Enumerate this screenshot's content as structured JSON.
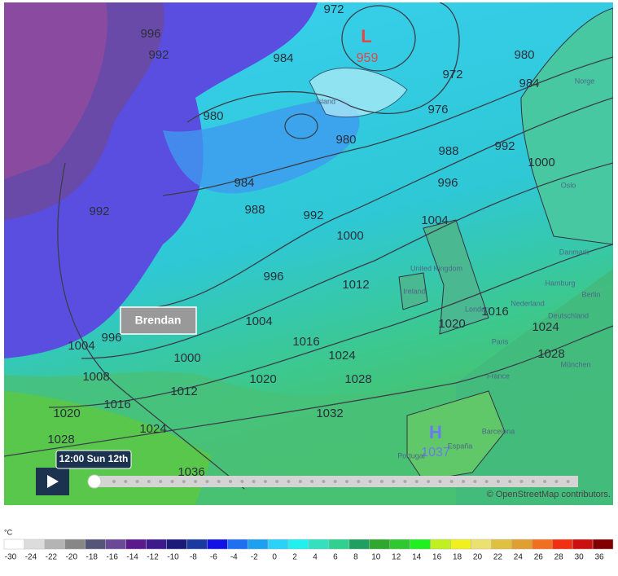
{
  "map": {
    "low": {
      "letter": "L",
      "pressure": 959
    },
    "high": {
      "letter": "H",
      "pressure": 1037
    },
    "storm_label": "Brendan",
    "time_label": "12:00 Sun 12th",
    "attribution": "© OpenStreetMap contributors.",
    "isobar_labels": [
      996,
      992,
      984,
      972,
      980,
      980,
      976,
      972,
      980,
      984,
      988,
      992,
      984,
      988,
      992,
      996,
      1000,
      1000,
      996,
      1004,
      1012,
      1016,
      1024,
      1028,
      1020,
      1000,
      1012,
      1016,
      1008,
      1004,
      996,
      1020,
      1024,
      1028,
      1032,
      1036,
      1024,
      1028,
      1016,
      1020,
      1004,
      992
    ],
    "place_names": [
      "Island",
      "Norge",
      "Oslo",
      "Danmark",
      "Hamburg",
      "Berlin",
      "Nederland",
      "Deutschland",
      "United Kingdom",
      "Ireland",
      "London",
      "Paris",
      "France",
      "München",
      "Barcelona",
      "Portugal",
      "España"
    ]
  },
  "legend": {
    "unit": "°C",
    "values": [
      -30,
      -24,
      -22,
      -20,
      -18,
      -16,
      -14,
      -12,
      -10,
      -8,
      -6,
      -4,
      -2,
      0,
      2,
      4,
      6,
      8,
      10,
      12,
      14,
      16,
      18,
      20,
      22,
      24,
      26,
      28,
      30,
      36
    ],
    "colors": [
      "#ffffff",
      "#dcdcdc",
      "#b4b4b4",
      "#878787",
      "#55557a",
      "#6a4a96",
      "#5a1a8c",
      "#3c1a8c",
      "#1a1a78",
      "#1a3aa0",
      "#1212e6",
      "#1e70f0",
      "#1ea0f0",
      "#2ad2f8",
      "#22f0ee",
      "#34e0c0",
      "#30d090",
      "#20a060",
      "#30a830",
      "#30c830",
      "#20f020",
      "#c0f020",
      "#f0f020",
      "#ece070",
      "#e0c040",
      "#e0a030",
      "#f07020",
      "#f03010",
      "#cc1010",
      "#800000"
    ]
  }
}
